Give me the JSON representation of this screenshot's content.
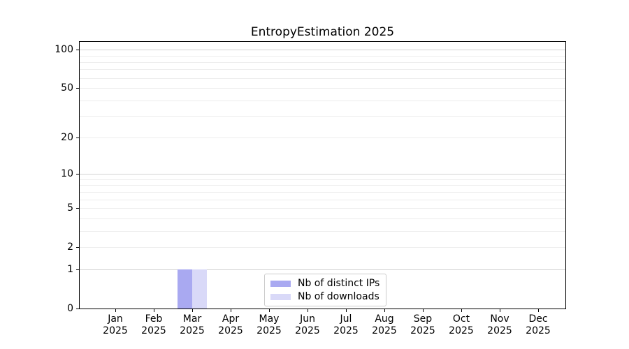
{
  "chart_data": {
    "type": "bar",
    "title": "EntropyEstimation 2025",
    "categories": [
      "Jan 2025",
      "Feb 2025",
      "Mar 2025",
      "Apr 2025",
      "May 2025",
      "Jun 2025",
      "Jul 2025",
      "Aug 2025",
      "Sep 2025",
      "Oct 2025",
      "Nov 2025",
      "Dec 2025"
    ],
    "series": [
      {
        "name": "Nb of distinct IPs",
        "color": "#a9a9f1",
        "values": [
          0,
          0,
          1,
          0,
          0,
          0,
          0,
          0,
          0,
          0,
          0,
          0
        ]
      },
      {
        "name": "Nb of downloads",
        "color": "#d9d9f8",
        "values": [
          0,
          0,
          1,
          0,
          0,
          0,
          0,
          0,
          0,
          0,
          0,
          0
        ]
      }
    ],
    "yscale": "log1p",
    "ylim": [
      0,
      115
    ],
    "y_ticks": [
      0,
      1,
      2,
      5,
      10,
      20,
      50,
      100
    ],
    "grid": {
      "on": true,
      "major": [
        1,
        10,
        100
      ],
      "minor": [
        2,
        3,
        4,
        5,
        6,
        7,
        8,
        9,
        20,
        30,
        40,
        50,
        60,
        70,
        80,
        90
      ]
    },
    "legend": {
      "position": "lower center"
    },
    "colors": {
      "grid_major": "#d3d3d3",
      "grid_minor": "#ededed",
      "axis": "#000000",
      "background": "#ffffff"
    }
  }
}
